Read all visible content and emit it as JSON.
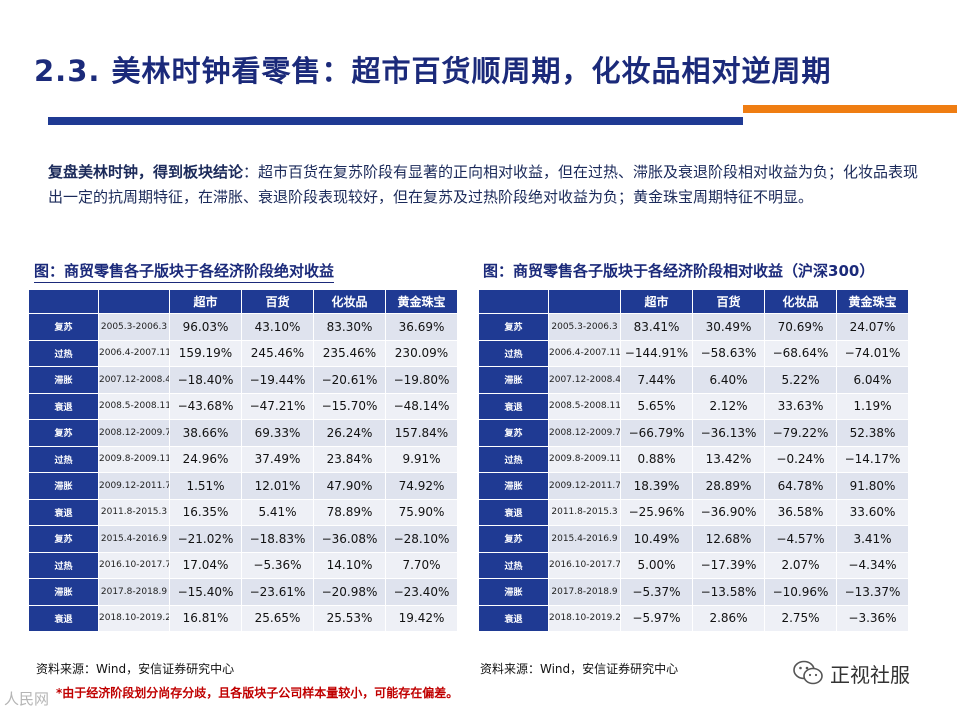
{
  "title": "2.3. 美林时钟看零售：超市百货顺周期，化妆品相对逆周期",
  "summary": {
    "lead": "复盘美林时钟，得到板块结论",
    "body": "：超市百货在复苏阶段有显著的正向相对收益，但在过热、滞胀及衰退阶段相对收益为负；化妆品表现出一定的抗周期特征，在滞胀、衰退阶段表现较好，但在复苏及过热阶段绝对收益为负；黄金珠宝周期特征不明显。"
  },
  "table_left": {
    "caption": "图：商贸零售各子版块于各经济阶段绝对收益",
    "headers": [
      "超市",
      "百货",
      "化妆品",
      "黄金珠宝"
    ],
    "rows": [
      {
        "phase": "复苏",
        "period": "2005.3-2006.3",
        "values": [
          "96.03%",
          "43.10%",
          "83.30%",
          "36.69%"
        ]
      },
      {
        "phase": "过热",
        "period": "2006.4-2007.11",
        "values": [
          "159.19%",
          "245.46%",
          "235.46%",
          "230.09%"
        ]
      },
      {
        "phase": "滞胀",
        "period": "2007.12-2008.4",
        "values": [
          "−18.40%",
          "−19.44%",
          "−20.61%",
          "−19.80%"
        ]
      },
      {
        "phase": "衰退",
        "period": "2008.5-2008.11",
        "values": [
          "−43.68%",
          "−47.21%",
          "−15.70%",
          "−48.14%"
        ]
      },
      {
        "phase": "复苏",
        "period": "2008.12-2009.7",
        "values": [
          "38.66%",
          "69.33%",
          "26.24%",
          "157.84%"
        ]
      },
      {
        "phase": "过热",
        "period": "2009.8-2009.11",
        "values": [
          "24.96%",
          "37.49%",
          "23.84%",
          "9.91%"
        ]
      },
      {
        "phase": "滞胀",
        "period": "2009.12-2011.7",
        "values": [
          "1.51%",
          "12.01%",
          "47.90%",
          "74.92%"
        ]
      },
      {
        "phase": "衰退",
        "period": "2011.8-2015.3",
        "values": [
          "16.35%",
          "5.41%",
          "78.89%",
          "75.90%"
        ]
      },
      {
        "phase": "复苏",
        "period": "2015.4-2016.9",
        "values": [
          "−21.02%",
          "−18.83%",
          "−36.08%",
          "−28.10%"
        ]
      },
      {
        "phase": "过热",
        "period": "2016.10-2017.7",
        "values": [
          "17.04%",
          "−5.36%",
          "14.10%",
          "7.70%"
        ]
      },
      {
        "phase": "滞胀",
        "period": "2017.8-2018.9",
        "values": [
          "−15.40%",
          "−23.61%",
          "−20.98%",
          "−23.40%"
        ]
      },
      {
        "phase": "衰退",
        "period": "2018.10-2019.2",
        "values": [
          "16.81%",
          "25.65%",
          "25.53%",
          "19.42%"
        ]
      }
    ],
    "source": "资料来源：Wind，安信证券研究中心"
  },
  "table_right": {
    "caption": "图：商贸零售各子版块于各经济阶段相对收益（沪深300）",
    "headers": [
      "超市",
      "百货",
      "化妆品",
      "黄金珠宝"
    ],
    "rows": [
      {
        "phase": "复苏",
        "period": "2005.3-2006.3",
        "values": [
          "83.41%",
          "30.49%",
          "70.69%",
          "24.07%"
        ]
      },
      {
        "phase": "过热",
        "period": "2006.4-2007.11",
        "values": [
          "−144.91%",
          "−58.63%",
          "−68.64%",
          "−74.01%"
        ]
      },
      {
        "phase": "滞胀",
        "period": "2007.12-2008.4",
        "values": [
          "7.44%",
          "6.40%",
          "5.22%",
          "6.04%"
        ]
      },
      {
        "phase": "衰退",
        "period": "2008.5-2008.11",
        "values": [
          "5.65%",
          "2.12%",
          "33.63%",
          "1.19%"
        ]
      },
      {
        "phase": "复苏",
        "period": "2008.12-2009.7",
        "values": [
          "−66.79%",
          "−36.13%",
          "−79.22%",
          "52.38%"
        ]
      },
      {
        "phase": "过热",
        "period": "2009.8-2009.11",
        "values": [
          "0.88%",
          "13.42%",
          "−0.24%",
          "−14.17%"
        ]
      },
      {
        "phase": "滞胀",
        "period": "2009.12-2011.7",
        "values": [
          "18.39%",
          "28.89%",
          "64.78%",
          "91.80%"
        ]
      },
      {
        "phase": "衰退",
        "period": "2011.8-2015.3",
        "values": [
          "−25.96%",
          "−36.90%",
          "36.58%",
          "33.60%"
        ]
      },
      {
        "phase": "复苏",
        "period": "2015.4-2016.9",
        "values": [
          "10.49%",
          "12.68%",
          "−4.57%",
          "3.41%"
        ]
      },
      {
        "phase": "过热",
        "period": "2016.10-2017.7",
        "values": [
          "5.00%",
          "−17.39%",
          "2.07%",
          "−4.34%"
        ]
      },
      {
        "phase": "滞胀",
        "period": "2017.8-2018.9",
        "values": [
          "−5.37%",
          "−13.58%",
          "−10.96%",
          "−13.37%"
        ]
      },
      {
        "phase": "衰退",
        "period": "2018.10-2019.2",
        "values": [
          "−5.97%",
          "2.86%",
          "2.75%",
          "−3.36%"
        ]
      }
    ],
    "source": "资料来源：Wind，安信证券研究中心"
  },
  "note": "*由于经济阶段划分尚存分歧，且各版块子公司样本量较小，可能存在偏差。",
  "watermark": {
    "right_text": "正视社服",
    "left_text": "人民网"
  },
  "colors": {
    "navy": "#1f3a93",
    "orange": "#ef7d12",
    "note_red": "#c00000"
  }
}
